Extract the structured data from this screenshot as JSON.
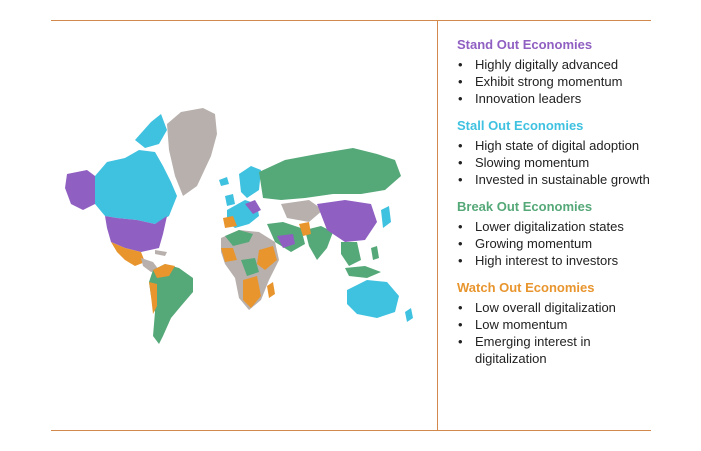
{
  "colors": {
    "rule": "#d4894c",
    "stand_out": "#8f5fc2",
    "stall_out": "#3fc1e0",
    "break_out": "#55a878",
    "watch_out": "#e8952e",
    "unclassified": "#b8b0ad"
  },
  "legend": [
    {
      "title": "Stand Out Economies",
      "color": "#8f5fc2",
      "items": [
        "Highly digitally advanced",
        "Exhibit strong momentum",
        "Innovation leaders"
      ]
    },
    {
      "title": "Stall Out Economies",
      "color": "#3fc1e0",
      "items": [
        "High state of digital adoption",
        "Slowing momentum",
        "Invested in sustainable growth"
      ]
    },
    {
      "title": "Break Out Economies",
      "color": "#55a878",
      "items": [
        "Lower digitalization states",
        "Growing momentum",
        "High interest to investors"
      ]
    },
    {
      "title": "Watch Out Economies",
      "color": "#e8952e",
      "items": [
        "Low overall digitalization",
        "Low momentum",
        "Emerging interest in digitalization"
      ]
    }
  ]
}
